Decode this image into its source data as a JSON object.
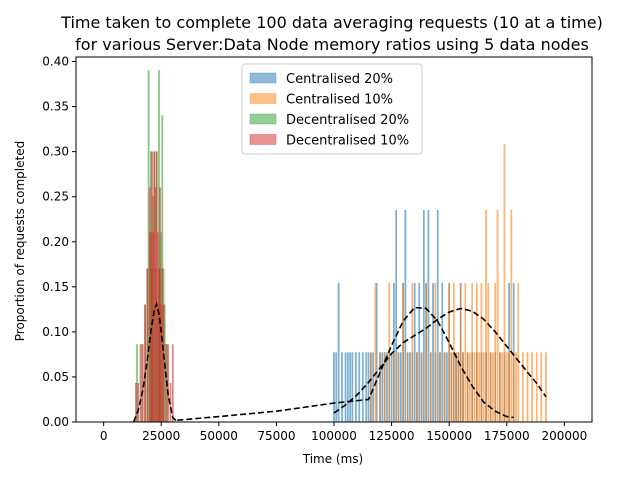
{
  "chart_data": {
    "type": "bar",
    "title": "Time taken to complete 100 data averaging requests (10 at a time)",
    "subtitle": "for various Server:Data Node memory ratios using 5 data nodes",
    "xlabel": "Time (ms)",
    "ylabel": "Proportion of requests completed",
    "xlim": [
      -12000,
      212000
    ],
    "ylim": [
      0,
      0.405
    ],
    "xticks": [
      0,
      25000,
      50000,
      75000,
      100000,
      125000,
      150000,
      175000,
      200000
    ],
    "xtick_labels": [
      "0",
      "25000",
      "50000",
      "75000",
      "100000",
      "125000",
      "150000",
      "175000",
      "200000"
    ],
    "yticks": [
      0.0,
      0.05,
      0.1,
      0.15,
      0.2,
      0.25,
      0.3,
      0.35,
      0.4
    ],
    "ytick_labels": [
      "0.00",
      "0.05",
      "0.10",
      "0.15",
      "0.20",
      "0.25",
      "0.30",
      "0.35",
      "0.40"
    ],
    "grid": false,
    "legend_position": "top-center",
    "legend": [
      {
        "name": "Centralised 20%",
        "color": "#1f77b4"
      },
      {
        "name": "Centralised 10%",
        "color": "#ff7f0e"
      },
      {
        "name": "Decentralised 20%",
        "color": "#2ca02c"
      },
      {
        "name": "Decentralised 10%",
        "color": "#d62728"
      }
    ],
    "series": [
      {
        "name": "Centralised 20%",
        "color": "#1f77b4",
        "bar_width": 500,
        "x": [
          100000,
          101000,
          102000,
          103500,
          105000,
          106000,
          107000,
          108000,
          109500,
          111000,
          112500,
          114000,
          115000,
          116000,
          117000,
          118500,
          120000,
          121000,
          122000,
          123000,
          124000,
          125000,
          126000,
          127000,
          128000,
          129000,
          130000,
          131000,
          132000,
          133000,
          134000,
          135000,
          136000,
          137000,
          138000,
          139000,
          140000,
          141000,
          142000,
          143000,
          144000,
          145000,
          146000,
          147000,
          148000,
          149000,
          150000,
          151000,
          152000,
          153000,
          154000,
          155000,
          156000,
          158000,
          160000,
          162000,
          164000,
          166000,
          168000,
          170000,
          172000,
          174000,
          176000,
          178000
        ],
        "values": [
          0.077,
          0.077,
          0.154,
          0.077,
          0.077,
          0.077,
          0.077,
          0.077,
          0.077,
          0.077,
          0.077,
          0.077,
          0.077,
          0.077,
          0.077,
          0.154,
          0.077,
          0.077,
          0.077,
          0.077,
          0.077,
          0.077,
          0.154,
          0.235,
          0.077,
          0.077,
          0.154,
          0.235,
          0.077,
          0.077,
          0.077,
          0.154,
          0.077,
          0.154,
          0.077,
          0.235,
          0.154,
          0.235,
          0.077,
          0.154,
          0.077,
          0.235,
          0.077,
          0.154,
          0.077,
          0.077,
          0.154,
          0.077,
          0.077,
          0.077,
          0.077,
          0.154,
          0.077,
          0.077,
          0.077,
          0.077,
          0.077,
          0.077,
          0.077,
          0.077,
          0.077,
          0.077,
          0.154,
          0.154
        ]
      },
      {
        "name": "Centralised 10%",
        "color": "#ff7f0e",
        "bar_width": 500,
        "x": [
          116000,
          118000,
          120000,
          122000,
          124000,
          126000,
          128000,
          130000,
          132000,
          134000,
          136000,
          138000,
          140000,
          142000,
          144000,
          146000,
          148000,
          150000,
          151000,
          152000,
          153000,
          154000,
          155000,
          156000,
          157000,
          158000,
          159000,
          160000,
          161000,
          162000,
          163000,
          164000,
          165000,
          166000,
          167000,
          168000,
          169000,
          170000,
          171000,
          172000,
          173000,
          174000,
          175000,
          176000,
          177000,
          178000,
          179000,
          180000,
          182000,
          184000,
          186000,
          188000,
          190000,
          192000
        ],
        "values": [
          0.077,
          0.154,
          0.077,
          0.077,
          0.154,
          0.077,
          0.077,
          0.154,
          0.077,
          0.154,
          0.077,
          0.077,
          0.154,
          0.077,
          0.154,
          0.077,
          0.077,
          0.154,
          0.077,
          0.154,
          0.077,
          0.077,
          0.154,
          0.077,
          0.154,
          0.077,
          0.077,
          0.154,
          0.077,
          0.154,
          0.077,
          0.154,
          0.077,
          0.235,
          0.154,
          0.077,
          0.077,
          0.154,
          0.235,
          0.077,
          0.077,
          0.308,
          0.077,
          0.077,
          0.235,
          0.077,
          0.077,
          0.154,
          0.077,
          0.077,
          0.077,
          0.077,
          0.077,
          0.077
        ]
      },
      {
        "name": "Decentralised 20%",
        "color": "#2ca02c",
        "bar_width": 400,
        "x": [
          14500,
          16500,
          18000,
          19000,
          19500,
          20000,
          20500,
          21000,
          21500,
          22000,
          22500,
          23000,
          23500,
          24000,
          24500,
          25000,
          25500,
          26000,
          26500,
          27500
        ],
        "values": [
          0.086,
          0.086,
          0.13,
          0.17,
          0.39,
          0.21,
          0.3,
          0.17,
          0.25,
          0.3,
          0.17,
          0.3,
          0.13,
          0.39,
          0.17,
          0.21,
          0.34,
          0.17,
          0.13,
          0.086
        ]
      },
      {
        "name": "Decentralised 10%",
        "color": "#d62728",
        "bar_width": 400,
        "x": [
          14000,
          15000,
          16000,
          17000,
          18000,
          19000,
          20000,
          20500,
          21000,
          21500,
          22000,
          22500,
          23000,
          23500,
          24000,
          24500,
          25000,
          25500,
          26000,
          27000,
          28000,
          29000,
          30000
        ],
        "values": [
          0.043,
          0.043,
          0.086,
          0.086,
          0.13,
          0.17,
          0.26,
          0.21,
          0.3,
          0.21,
          0.3,
          0.26,
          0.3,
          0.21,
          0.17,
          0.26,
          0.13,
          0.17,
          0.13,
          0.086,
          0.086,
          0.043,
          0.086
        ]
      }
    ],
    "fit_curves": [
      {
        "style": "dashed",
        "color": "#000000",
        "x": [
          13000,
          15000,
          17000,
          19000,
          20500,
          22000,
          23000,
          24000,
          25000,
          26500,
          28000,
          30000,
          32000
        ],
        "y": [
          0.0,
          0.013,
          0.035,
          0.07,
          0.1,
          0.125,
          0.131,
          0.12,
          0.1,
          0.065,
          0.03,
          0.005,
          0.0
        ]
      },
      {
        "style": "dashed",
        "color": "#000000",
        "x": [
          32000,
          50000,
          75000,
          100000,
          115000,
          120000,
          125000,
          130000,
          135000,
          140000,
          145000,
          150000,
          155000,
          160000,
          165000,
          170000,
          175000,
          178000
        ],
        "y": [
          0.002,
          0.006,
          0.012,
          0.021,
          0.025,
          0.055,
          0.085,
          0.112,
          0.127,
          0.126,
          0.112,
          0.088,
          0.062,
          0.04,
          0.022,
          0.012,
          0.006,
          0.005
        ]
      },
      {
        "style": "dashed",
        "color": "#000000",
        "x": [
          100000,
          105000,
          110000,
          115000,
          120000,
          125000,
          130000,
          135000,
          140000,
          145000,
          150000,
          155000,
          160000,
          165000,
          170000,
          175000,
          180000,
          185000,
          188000,
          192000
        ],
        "y": [
          0.01,
          0.019,
          0.03,
          0.044,
          0.06,
          0.076,
          0.088,
          0.096,
          0.104,
          0.114,
          0.122,
          0.126,
          0.123,
          0.114,
          0.1,
          0.084,
          0.068,
          0.052,
          0.043,
          0.028
        ]
      }
    ]
  }
}
